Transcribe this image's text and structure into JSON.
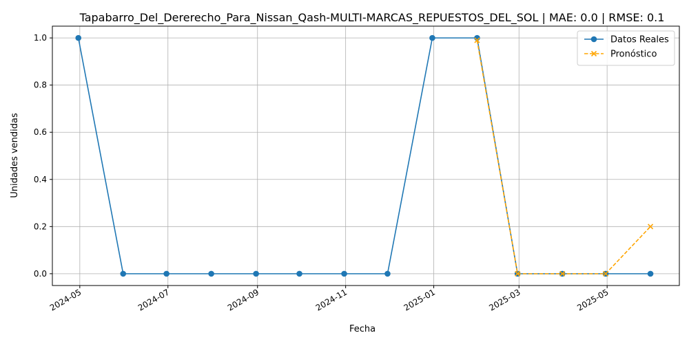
{
  "chart_data": {
    "type": "line",
    "title": "Tapabarro_Del_Dererecho_Para_Nissan_Qash-MULTI-MARCAS_REPUESTOS_DEL_SOL | MAE: 0.0 | RMSE: 0.1",
    "xlabel": "Fecha",
    "ylabel": "Unidades vendidas",
    "ylim": [
      -0.05,
      1.05
    ],
    "xlim": [
      "2024-04-12",
      "2025-06-20"
    ],
    "grid": true,
    "legend_position": "top-right",
    "x_ticks": [
      "2024-05",
      "2024-07",
      "2024-09",
      "2024-11",
      "2025-01",
      "2025-03",
      "2025-05"
    ],
    "y_ticks": [
      "0.0",
      "0.2",
      "0.4",
      "0.6",
      "0.8",
      "1.0"
    ],
    "series": [
      {
        "name": "Datos Reales",
        "color": "#1f77b4",
        "style": "solid",
        "marker": "circle",
        "x": [
          "2024-04-30",
          "2024-05-31",
          "2024-06-30",
          "2024-07-31",
          "2024-08-31",
          "2024-09-30",
          "2024-10-31",
          "2024-11-30",
          "2024-12-31",
          "2025-01-31",
          "2025-02-28",
          "2025-03-31",
          "2025-04-30",
          "2025-05-31"
        ],
        "y": [
          1,
          0,
          0,
          0,
          0,
          0,
          0,
          0,
          1,
          1,
          0,
          0,
          0,
          0
        ]
      },
      {
        "name": "Pronóstico",
        "color": "#ffa500",
        "style": "dashed",
        "marker": "x",
        "x": [
          "2025-01-31",
          "2025-02-28",
          "2025-03-31",
          "2025-04-30",
          "2025-05-31"
        ],
        "y": [
          0.99,
          0.0,
          0.0,
          0.0,
          0.2
        ]
      }
    ]
  }
}
